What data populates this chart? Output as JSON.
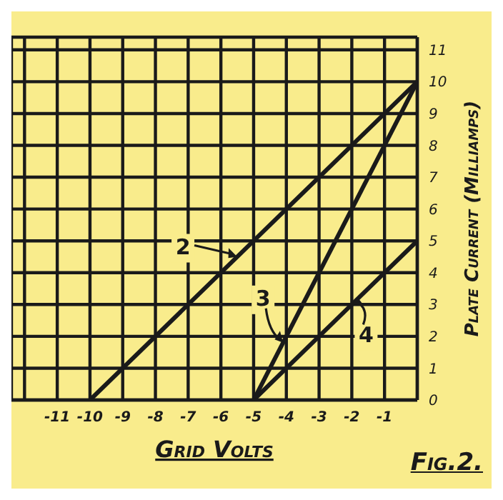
{
  "chart_data": {
    "type": "line",
    "xlabel": "Grid Volts",
    "ylabel": "Plate Current (Milliamps)",
    "xlim": [
      -12.4,
      0
    ],
    "ylim": [
      0,
      11.4
    ],
    "xticks": [
      {
        "value": -12,
        "label": null
      },
      -11,
      -10,
      -9,
      -8,
      -7,
      -6,
      -5,
      -4,
      -3,
      -2,
      -1,
      {
        "value": 0,
        "label": null
      }
    ],
    "yticks": [
      0,
      1,
      2,
      3,
      4,
      5,
      6,
      7,
      8,
      9,
      10,
      11
    ],
    "series": [
      {
        "color": "#1a1a1a",
        "x": [
          -10,
          0
        ],
        "values": [
          0,
          10
        ]
      },
      {
        "color": "#1a1a1a",
        "x": [
          -5,
          0
        ],
        "values": [
          0,
          10
        ]
      },
      {
        "color": "#1a1a1a",
        "x": [
          -5,
          0
        ],
        "values": [
          0,
          5
        ]
      }
    ],
    "annotations": [
      {
        "text": "2",
        "x": -5.5,
        "y": 4.5
      },
      {
        "text": "3",
        "x": -4.1,
        "y": 1.8
      },
      {
        "text": "4",
        "x": -2,
        "y": 3
      },
      "Fig.2."
    ],
    "grid": true,
    "legend": false,
    "marker": "none",
    "line_style": "solid"
  }
}
